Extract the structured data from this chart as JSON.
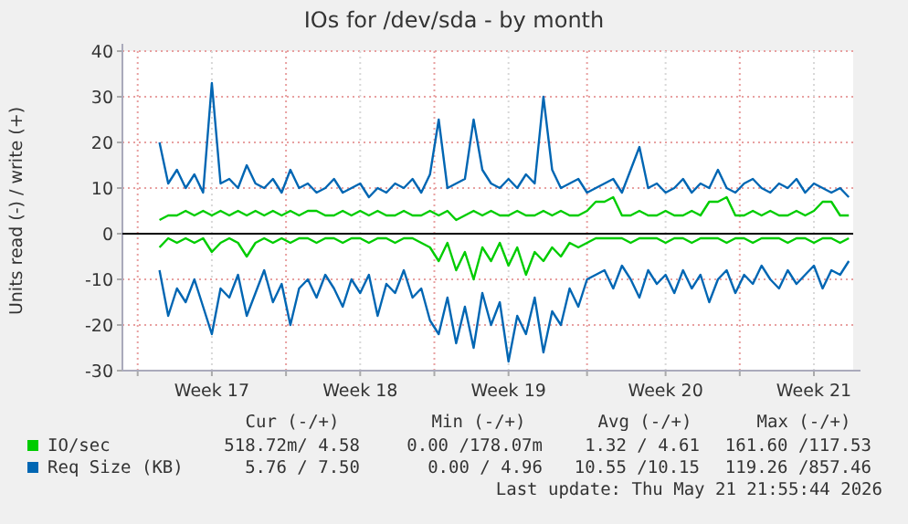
{
  "chart_data": {
    "type": "line",
    "title": "IOs for /dev/sda - by month",
    "ylabel": "Units read (-) / write (+)",
    "categories": [
      null,
      null,
      null,
      null,
      null,
      null,
      "Week 17",
      null,
      null,
      null,
      null,
      null,
      null,
      null,
      null,
      null,
      null,
      null,
      null,
      null,
      null,
      null,
      null,
      "Week 18",
      null,
      null,
      null,
      null,
      null,
      null,
      null,
      null,
      null,
      null,
      null,
      null,
      null,
      null,
      null,
      null,
      "Week 19",
      null,
      null,
      null,
      null,
      null,
      null,
      null,
      null,
      null,
      null,
      null,
      null,
      null,
      null,
      null,
      null,
      null,
      "Week 20",
      null,
      null,
      null,
      null,
      null,
      null,
      null,
      null,
      null,
      null,
      null,
      null,
      null,
      null,
      null,
      null,
      "Week 21",
      null,
      null,
      null,
      null
    ],
    "series": [
      {
        "name": "Req Size (KB)",
        "color": "#0066b3",
        "values": [
          20,
          11,
          14,
          10,
          13,
          9,
          33,
          11,
          12,
          10,
          15,
          11,
          10,
          12,
          9,
          14,
          10,
          11,
          9,
          10,
          12,
          9,
          10,
          11,
          8,
          10,
          9,
          11,
          10,
          12,
          9,
          13,
          25,
          10,
          11,
          12,
          25,
          14,
          11,
          10,
          12,
          10,
          13,
          11,
          30,
          14,
          10,
          11,
          12,
          9,
          10,
          11,
          12,
          9,
          14,
          19,
          10,
          11,
          9,
          10,
          12,
          9,
          11,
          10,
          14,
          10,
          9,
          11,
          12,
          10,
          9,
          11,
          10,
          12,
          9,
          11,
          10,
          9,
          10,
          8
        ]
      },
      {
        "color": "#0066b3",
        "values": [
          -8,
          -18,
          -12,
          -15,
          -10,
          -16,
          -22,
          -12,
          -14,
          -9,
          -18,
          -13,
          -8,
          -15,
          -11,
          -20,
          -12,
          -10,
          -14,
          -9,
          -12,
          -16,
          -10,
          -13,
          -9,
          -18,
          -11,
          -13,
          -8,
          -14,
          -12,
          -19,
          -22,
          -14,
          -24,
          -16,
          -25,
          -13,
          -20,
          -15,
          -28,
          -18,
          -22,
          -14,
          -26,
          -17,
          -20,
          -12,
          -16,
          -10,
          -9,
          -8,
          -12,
          -7,
          -10,
          -14,
          -8,
          -11,
          -9,
          -13,
          -8,
          -12,
          -9,
          -15,
          -10,
          -8,
          -13,
          -9,
          -11,
          -7,
          -10,
          -12,
          -8,
          -11,
          -9,
          -7,
          -12,
          -8,
          -9,
          -6
        ]
      },
      {
        "name": "IO/sec",
        "color": "#00cc00",
        "values": [
          3,
          4,
          4,
          5,
          4,
          5,
          4,
          5,
          4,
          5,
          4,
          5,
          4,
          5,
          4,
          5,
          4,
          5,
          5,
          4,
          4,
          5,
          4,
          5,
          4,
          5,
          4,
          4,
          5,
          4,
          4,
          5,
          4,
          5,
          3,
          4,
          5,
          4,
          5,
          4,
          4,
          5,
          4,
          4,
          5,
          4,
          5,
          4,
          4,
          5,
          7,
          7,
          8,
          4,
          4,
          5,
          4,
          4,
          5,
          4,
          4,
          5,
          4,
          7,
          7,
          8,
          4,
          4,
          5,
          4,
          5,
          4,
          4,
          5,
          4,
          5,
          7,
          7,
          4,
          4
        ]
      },
      {
        "color": "#00cc00",
        "values": [
          -3,
          -1,
          -2,
          -1,
          -2,
          -1,
          -4,
          -2,
          -1,
          -2,
          -5,
          -2,
          -1,
          -2,
          -1,
          -2,
          -1,
          -1,
          -2,
          -1,
          -1,
          -2,
          -1,
          -1,
          -2,
          -1,
          -1,
          -2,
          -1,
          -1,
          -2,
          -3,
          -6,
          -2,
          -8,
          -4,
          -10,
          -3,
          -6,
          -2,
          -7,
          -3,
          -9,
          -4,
          -6,
          -3,
          -5,
          -2,
          -3,
          -2,
          -1,
          -1,
          -1,
          -1,
          -2,
          -1,
          -1,
          -1,
          -2,
          -1,
          -1,
          -2,
          -1,
          -1,
          -1,
          -2,
          -1,
          -1,
          -2,
          -1,
          -1,
          -1,
          -2,
          -1,
          -1,
          -2,
          -1,
          -1,
          -2,
          -1
        ]
      }
    ],
    "ylim": [
      -30,
      40
    ],
    "yticks": [
      -30,
      -20,
      -10,
      0,
      10,
      20,
      30,
      40
    ],
    "grid": true,
    "legend": "bottom",
    "ref_lines": [
      {
        "axis": "y",
        "value": 0,
        "color": "#000000"
      }
    ],
    "annotations": [
      "Cur (-/+)",
      "Min (-/+)",
      "Avg (-/+)",
      "Max (-/+)",
      "518.72m/ 4.58",
      "0.00 /178.07m",
      "1.32 / 4.61",
      "161.60 /117.53",
      "5.76 / 7.50",
      "0.00 / 4.96",
      "10.55 /10.15",
      "119.26 /857.46",
      "Last update: Thu May 21 21:55:44 2026"
    ]
  }
}
